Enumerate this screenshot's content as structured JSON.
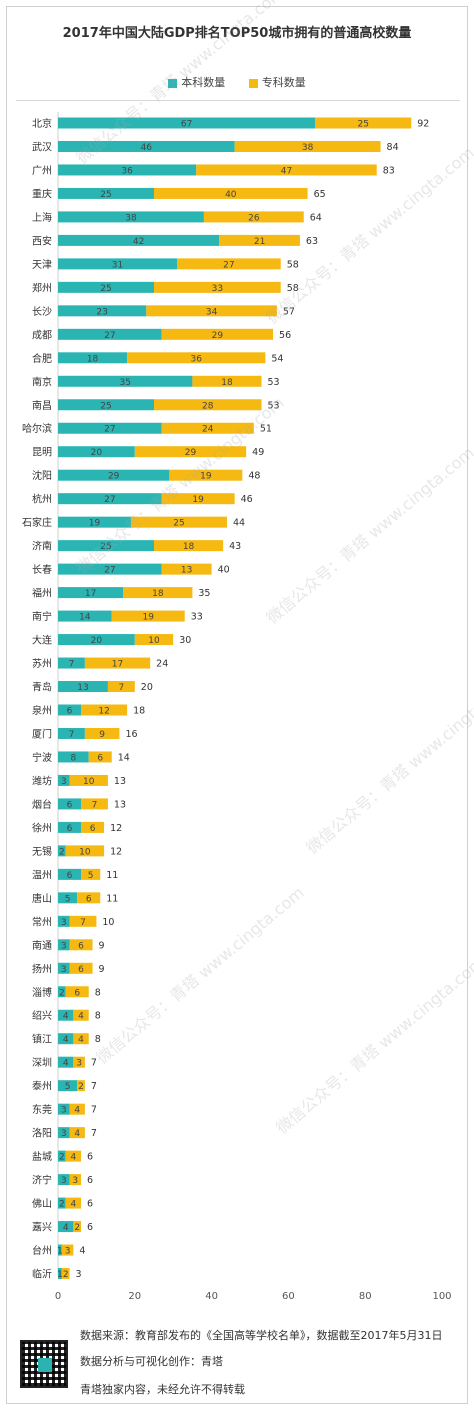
{
  "chart_data": {
    "type": "bar",
    "orientation": "horizontal",
    "stacked": true,
    "title": "2017年中国大陆GDP排名TOP50城市拥有的普通高校数量",
    "categories": [
      "北京",
      "武汉",
      "广州",
      "重庆",
      "上海",
      "西安",
      "天津",
      "郑州",
      "长沙",
      "成都",
      "合肥",
      "南京",
      "南昌",
      "哈尔滨",
      "昆明",
      "沈阳",
      "杭州",
      "石家庄",
      "济南",
      "长春",
      "福州",
      "南宁",
      "大连",
      "苏州",
      "青岛",
      "泉州",
      "厦门",
      "宁波",
      "潍坊",
      "烟台",
      "徐州",
      "无锡",
      "温州",
      "唐山",
      "常州",
      "南通",
      "扬州",
      "淄博",
      "绍兴",
      "镇江",
      "深圳",
      "泰州",
      "东莞",
      "洛阳",
      "盐城",
      "济宁",
      "佛山",
      "嘉兴",
      "台州",
      "临沂"
    ],
    "series": [
      {
        "name": "本科数量",
        "color": "#2ab5b3",
        "values": [
          67,
          46,
          36,
          25,
          38,
          42,
          31,
          25,
          23,
          27,
          18,
          35,
          25,
          27,
          20,
          29,
          27,
          19,
          25,
          27,
          17,
          14,
          20,
          7,
          13,
          6,
          7,
          8,
          3,
          6,
          6,
          2,
          6,
          5,
          3,
          3,
          3,
          2,
          4,
          4,
          4,
          5,
          3,
          3,
          2,
          3,
          2,
          4,
          1,
          1
        ]
      },
      {
        "name": "专科数量",
        "color": "#f5b912",
        "values": [
          25,
          38,
          47,
          40,
          26,
          21,
          27,
          33,
          34,
          29,
          36,
          18,
          28,
          24,
          29,
          19,
          19,
          25,
          18,
          13,
          18,
          19,
          10,
          17,
          7,
          12,
          9,
          6,
          10,
          7,
          6,
          10,
          5,
          6,
          7,
          6,
          6,
          6,
          4,
          4,
          3,
          2,
          4,
          4,
          4,
          3,
          4,
          2,
          3,
          2
        ]
      }
    ],
    "totals": [
      92,
      84,
      83,
      65,
      64,
      63,
      58,
      58,
      57,
      56,
      54,
      53,
      53,
      51,
      49,
      48,
      46,
      44,
      43,
      40,
      35,
      33,
      30,
      24,
      20,
      18,
      16,
      14,
      13,
      13,
      12,
      12,
      11,
      11,
      10,
      9,
      9,
      8,
      8,
      8,
      7,
      7,
      7,
      7,
      6,
      6,
      6,
      6,
      4,
      3
    ],
    "xlim": [
      0,
      100
    ],
    "xticks": [
      0,
      20,
      40,
      60,
      80,
      100
    ],
    "grid": false,
    "legend_position": "top"
  },
  "footer": {
    "source": "数据来源：教育部发布的《全国高等学校名单》，数据截至2017年5月31日",
    "author": "数据分析与可视化创作：青塔",
    "notice": "青塔独家内容，未经允许不得转载"
  },
  "watermark": "微信公众号：青塔  www.cingta.com"
}
